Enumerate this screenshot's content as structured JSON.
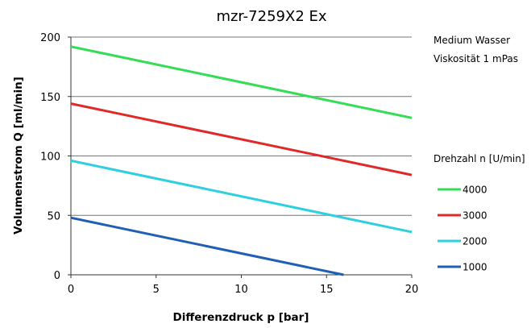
{
  "chart_data": {
    "type": "line",
    "title": "mzr-7259X2 Ex",
    "xlabel": "Differenzdruck p [bar]",
    "ylabel": "Volumenstrom Q [ml/min]",
    "xlim": [
      0,
      20
    ],
    "ylim": [
      0,
      200
    ],
    "xticks": [
      0,
      5,
      10,
      15,
      20
    ],
    "yticks": [
      0,
      50,
      100,
      150,
      200
    ],
    "grid": "horizontal",
    "annotations": [
      "Medium Wasser",
      "Viskosität 1 mPas"
    ],
    "legend_title": "Drehzahl n [U/min]",
    "legend_position": "right",
    "series": [
      {
        "name": "4000",
        "color": "#33dd55",
        "x": [
          0,
          20
        ],
        "y": [
          192,
          132
        ]
      },
      {
        "name": "3000",
        "color": "#e02a2a",
        "x": [
          0,
          20
        ],
        "y": [
          144,
          84
        ]
      },
      {
        "name": "2000",
        "color": "#2ed0e0",
        "x": [
          0,
          20
        ],
        "y": [
          96,
          36
        ]
      },
      {
        "name": "1000",
        "color": "#1f5fb5",
        "x": [
          0,
          16
        ],
        "y": [
          48,
          0
        ]
      }
    ]
  }
}
